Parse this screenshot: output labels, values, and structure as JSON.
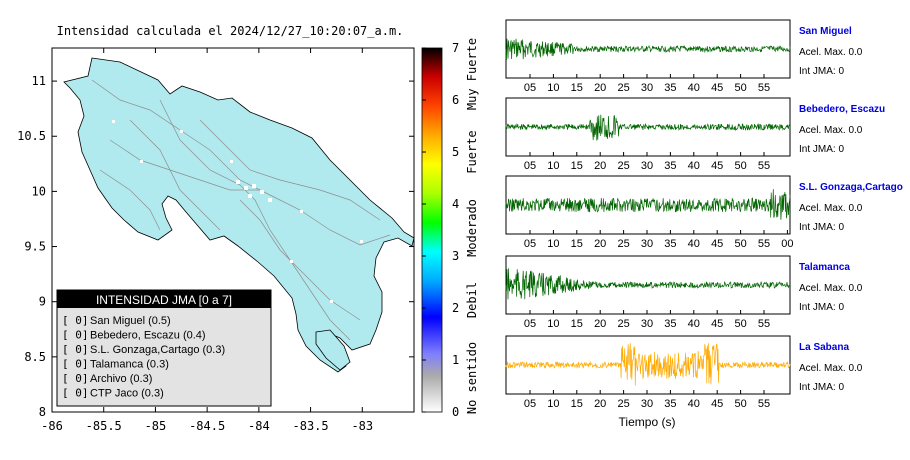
{
  "map": {
    "title": "Intensidad calculada el 2024/12/27_10:20:07_a.m.",
    "x_ticks": [
      "-86",
      "-85.5",
      "-85",
      "-84.5",
      "-84",
      "-83.5",
      "-83"
    ],
    "y_ticks": [
      "11",
      "10.5",
      "10",
      "9.5",
      "9",
      "8.5",
      "8"
    ],
    "xlim": [
      -86,
      -82.5
    ],
    "ylim": [
      8,
      11.3
    ],
    "land_color": "#b0eaee"
  },
  "legend": {
    "title": "INTENSIDAD JMA [0 a 7]",
    "items": [
      {
        "value": "[ 0]",
        "name": "San Miguel (0.5)"
      },
      {
        "value": "[ 0]",
        "name": "Bebedero, Escazu (0.4)"
      },
      {
        "value": "[ 0]",
        "name": "S.L. Gonzaga,Cartago (0.3)"
      },
      {
        "value": "[ 0]",
        "name": "Talamanca (0.3)"
      },
      {
        "value": "[ 0]",
        "name": "Archivo (0.3)"
      },
      {
        "value": "[ 0]",
        "name": "CTP Jaco (0.3)"
      }
    ]
  },
  "colorbar": {
    "ticks": [
      "0",
      "1",
      "2",
      "3",
      "4",
      "5",
      "6",
      "7"
    ],
    "labels": [
      "No sentido",
      "Debil",
      "Moderado",
      "Fuerte",
      "Muy Fuerte"
    ]
  },
  "chart_data": {
    "type": "line",
    "xlabel": "Tiempo (s)",
    "stations": [
      {
        "name": "San Miguel",
        "acel": "Acel. Max. 0.0",
        "jma": "Int JMA: 0",
        "color": "#006400",
        "ticks": [
          "05",
          "10",
          "15",
          "20",
          "25",
          "30",
          "35",
          "40",
          "45",
          "50",
          "55"
        ],
        "burst": [
          6,
          9
        ]
      },
      {
        "name": "Bebedero, Escazu",
        "acel": "Acel. Max. 0.0",
        "jma": "Int JMA: 0",
        "color": "#006400",
        "ticks": [
          "05",
          "10",
          "15",
          "20",
          "25",
          "30",
          "35",
          "40",
          "45",
          "50",
          "55"
        ],
        "burst": [
          18,
          22
        ]
      },
      {
        "name": "S.L. Gonzaga,Cartago",
        "acel": "Acel. Max. 0.0",
        "jma": "Int JMA: 0",
        "color": "#006400",
        "ticks": [
          "05",
          "10",
          "15",
          "20",
          "25",
          "30",
          "35",
          "40",
          "45",
          "50",
          "55",
          "00"
        ],
        "burst": [
          55,
          57
        ]
      },
      {
        "name": "Talamanca",
        "acel": "Acel. Max. 0.0",
        "jma": "Int JMA: 0",
        "color": "#006400",
        "ticks": [
          "05",
          "10",
          "15",
          "20",
          "25",
          "30",
          "35",
          "40",
          "45",
          "50",
          "55"
        ],
        "burst": [
          2,
          6
        ]
      },
      {
        "name": "La Sabana",
        "acel": "Acel. Max. 0.0",
        "jma": "Int JMA: 0",
        "color": "#ffaa00",
        "ticks": [
          "05",
          "10",
          "15",
          "20",
          "25",
          "30",
          "35",
          "40",
          "45",
          "50",
          "55"
        ],
        "burst": [
          25,
          42
        ]
      }
    ]
  }
}
